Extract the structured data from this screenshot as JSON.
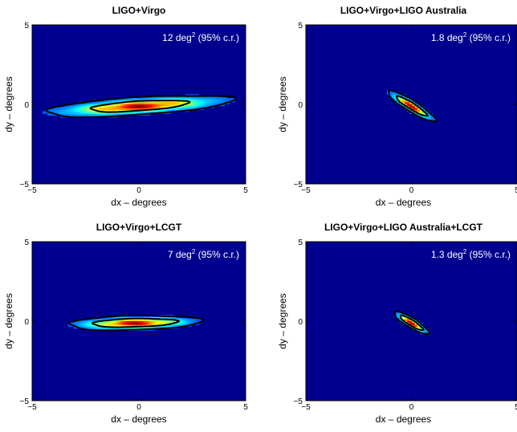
{
  "chart_data": [
    {
      "type": "heatmap",
      "title": "LIGO+Virgo",
      "xlabel": "dx – degrees",
      "ylabel": "dy – degrees",
      "xlim": [
        -5,
        5
      ],
      "ylim": [
        -5,
        5
      ],
      "xticks": [
        "−5",
        "0",
        "5"
      ],
      "yticks": [
        "5",
        "0",
        "−5"
      ],
      "annotation": {
        "value": "12 deg",
        "sup": "2",
        "suffix": " (95% c.r.)"
      },
      "region": {
        "center": [
          0.0,
          -0.1
        ],
        "tilt_deg": 5,
        "half_width_95": 4.4,
        "half_height_95": 0.55,
        "half_width_68": 2.3,
        "half_height_68": 0.3
      }
    },
    {
      "type": "heatmap",
      "title": "LIGO+Virgo+LIGO Australia",
      "xlabel": "dx – degrees",
      "ylabel": "dy – degrees",
      "xlim": [
        -5,
        5
      ],
      "ylim": [
        -5,
        5
      ],
      "xticks": [
        "−5",
        "0",
        "5"
      ],
      "yticks": [
        "5",
        "0",
        "−5"
      ],
      "annotation": {
        "value": "1.8 deg",
        "sup": "2",
        "suffix": " (95% c.r.)"
      },
      "region": {
        "center": [
          0.0,
          -0.1
        ],
        "tilt_deg": -40,
        "half_width_95": 1.45,
        "half_height_95": 0.32,
        "half_width_68": 0.95,
        "half_height_68": 0.18
      }
    },
    {
      "type": "heatmap",
      "title": "LIGO+Virgo+LCGT",
      "xlabel": "dx – degrees",
      "ylabel": "dy – degrees",
      "xlim": [
        -5,
        5
      ],
      "ylim": [
        -5,
        5
      ],
      "xticks": [
        "−5",
        "0",
        "5"
      ],
      "yticks": [
        "5",
        "0",
        "−5"
      ],
      "annotation": {
        "value": "7 deg",
        "sup": "2",
        "suffix": " (95% c.r.)"
      },
      "region": {
        "center": [
          -0.2,
          -0.1
        ],
        "tilt_deg": 2,
        "half_width_95": 3.1,
        "half_height_95": 0.45,
        "half_width_68": 2.0,
        "half_height_68": 0.26
      }
    },
    {
      "type": "heatmap",
      "title": "LIGO+Virgo+LIGO Australia+LCGT",
      "xlabel": "dx – degrees",
      "ylabel": "dy – degrees",
      "xlim": [
        -5,
        5
      ],
      "ylim": [
        -5,
        5
      ],
      "xticks": [
        "−5",
        "0",
        "5"
      ],
      "yticks": [
        "5",
        "0",
        "−5"
      ],
      "annotation": {
        "value": "1.3 deg",
        "sup": "2",
        "suffix": " (95% c.r.)"
      },
      "region": {
        "center": [
          0.0,
          -0.1
        ],
        "tilt_deg": -40,
        "half_width_95": 1.05,
        "half_height_95": 0.28,
        "half_width_68": 0.7,
        "half_height_68": 0.16
      }
    }
  ],
  "colors": {
    "background": "#00008f",
    "contour": "#000000"
  }
}
